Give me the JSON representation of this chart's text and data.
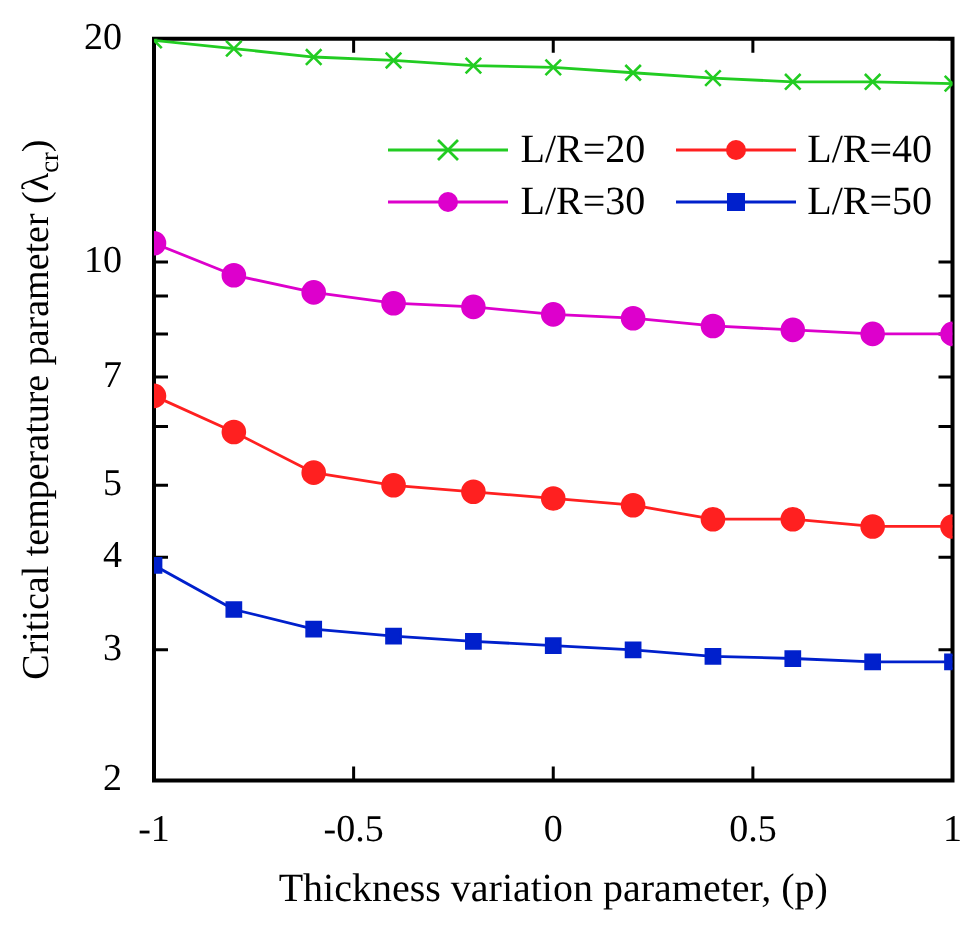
{
  "chart_data": {
    "type": "line",
    "xlabel": "Thickness variation parameter, (p)",
    "ylabel": "Critical temperature parameter (λ$_{cr}$)",
    "x": [
      -1,
      -0.8,
      -0.6,
      -0.4,
      -0.2,
      0,
      0.2,
      0.4,
      0.6,
      0.8,
      1
    ],
    "series": [
      {
        "name": "L/R=20",
        "color": "#22cc22",
        "marker": "cross",
        "values": [
          19.9,
          19.4,
          18.9,
          18.7,
          18.4,
          18.3,
          18.0,
          17.7,
          17.5,
          17.5,
          17.4
        ]
      },
      {
        "name": "L/R=40",
        "color": "#ff2020",
        "marker": "circle",
        "values": [
          6.6,
          5.9,
          5.2,
          5.0,
          4.9,
          4.8,
          4.7,
          4.5,
          4.5,
          4.4,
          4.4
        ]
      },
      {
        "name": "L/R=30",
        "color": "#dd00cc",
        "marker": "circle",
        "values": [
          10.6,
          9.6,
          9.1,
          8.8,
          8.7,
          8.5,
          8.4,
          8.2,
          8.1,
          8.0,
          8.0
        ]
      },
      {
        "name": "L/R=50",
        "color": "#0020cc",
        "marker": "square",
        "values": [
          3.9,
          3.4,
          3.2,
          3.13,
          3.08,
          3.04,
          3.0,
          2.94,
          2.92,
          2.89,
          2.89
        ]
      }
    ],
    "xlim": [
      -1,
      1
    ],
    "xticks": [
      -1,
      -0.5,
      0,
      0.5,
      1
    ],
    "log": "y",
    "ylim": [
      2,
      20
    ],
    "yticks": [
      2,
      3,
      4,
      5,
      {
        "value": 6,
        "label": null
      },
      7,
      {
        "value": 8,
        "label": null
      },
      {
        "value": 9,
        "label": null
      },
      10,
      20
    ],
    "grid": false,
    "legend": "top right",
    "line_style": "solid"
  }
}
